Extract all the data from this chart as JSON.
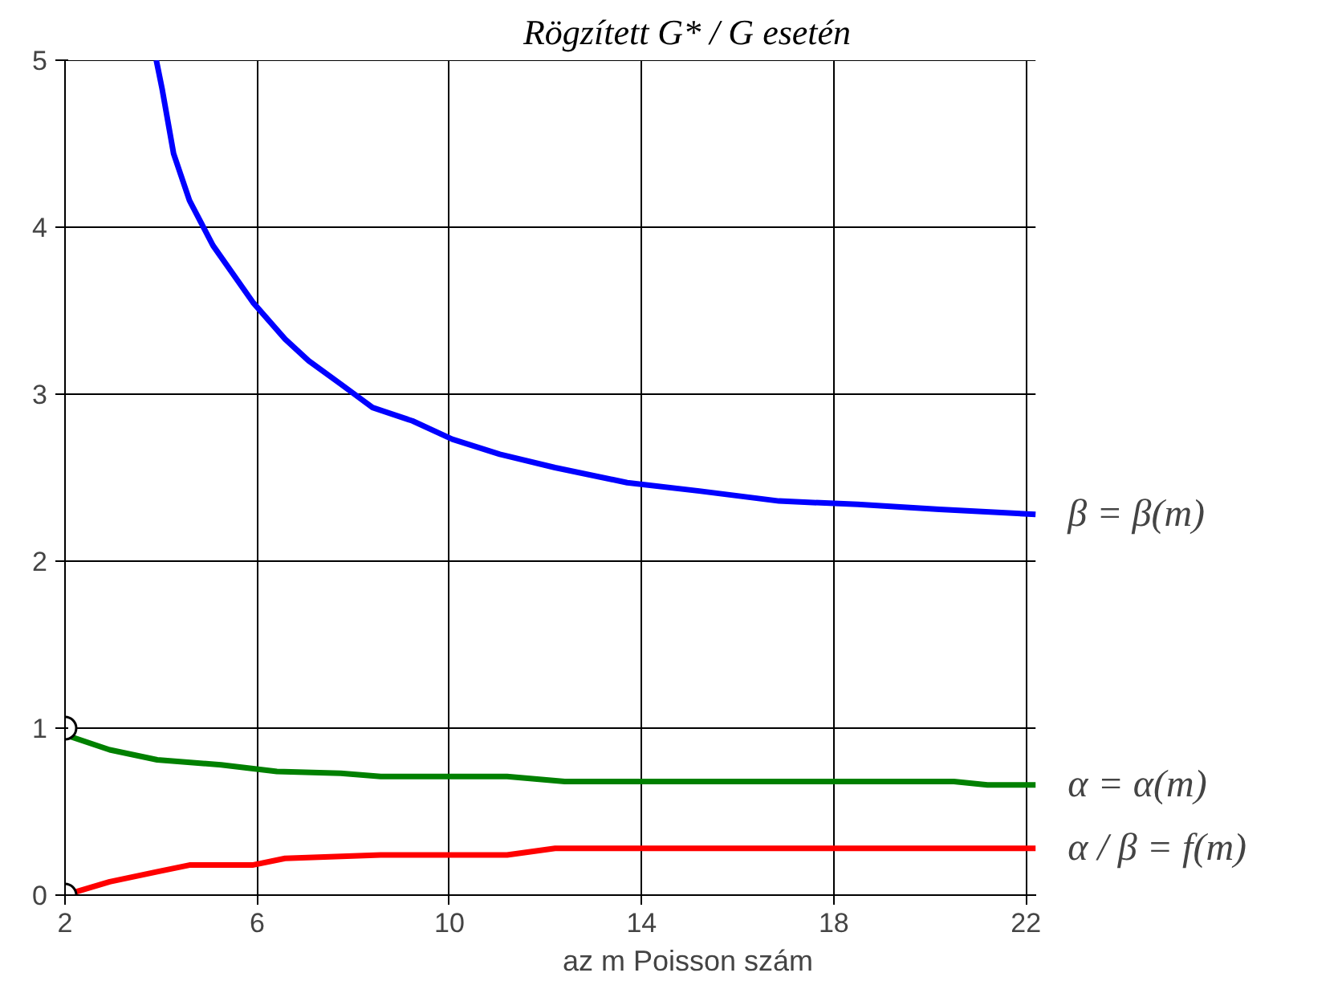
{
  "chart_data": {
    "type": "line",
    "title": "Rögzített  G* / G  esetén",
    "xlabel": "az  m  Poisson szám",
    "xlim": [
      2,
      22.2
    ],
    "ylim": [
      0,
      5
    ],
    "xticks": [
      2,
      6,
      10,
      14,
      18,
      22
    ],
    "yticks": [
      0,
      1,
      2,
      3,
      4,
      5
    ],
    "grid": true,
    "line_style": "solid",
    "series": [
      {
        "name": "β = β(m)",
        "color": "#0000ff",
        "x": [
          3.9,
          4.02,
          4.26,
          4.59,
          5.08,
          5.91,
          6.58,
          7.07,
          7.74,
          8.4,
          9.23,
          10.06,
          11.05,
          12.2,
          13.7,
          15.2,
          16.86,
          18.5,
          20.2,
          22.2
        ],
        "values": [
          5,
          4.83,
          4.44,
          4.16,
          3.89,
          3.55,
          3.33,
          3.2,
          3.06,
          2.92,
          2.84,
          2.73,
          2.64,
          2.56,
          2.47,
          2.42,
          2.36,
          2.34,
          2.31,
          2.28
        ]
      },
      {
        "name": "α = α(m)",
        "color": "#008000",
        "x": [
          2,
          2.93,
          3.92,
          5.25,
          6.41,
          7.74,
          8.57,
          11.2,
          12.4,
          20.5,
          21.2,
          22.2
        ],
        "values": [
          0.96,
          0.87,
          0.81,
          0.78,
          0.74,
          0.73,
          0.71,
          0.71,
          0.68,
          0.68,
          0.66,
          0.66
        ]
      },
      {
        "name": "α / β = f(m)",
        "color": "#ff0000",
        "x": [
          2,
          2.93,
          3.92,
          4.59,
          5.9,
          6.58,
          8.57,
          11.2,
          12.2,
          22.2
        ],
        "values": [
          0,
          0.08,
          0.14,
          0.18,
          0.18,
          0.22,
          0.24,
          0.24,
          0.28,
          0.28
        ]
      },
      {
        "type": "scatter",
        "marker": "circle",
        "color": "#000000",
        "x": [
          2,
          2
        ],
        "values": [
          1,
          0
        ]
      }
    ]
  }
}
